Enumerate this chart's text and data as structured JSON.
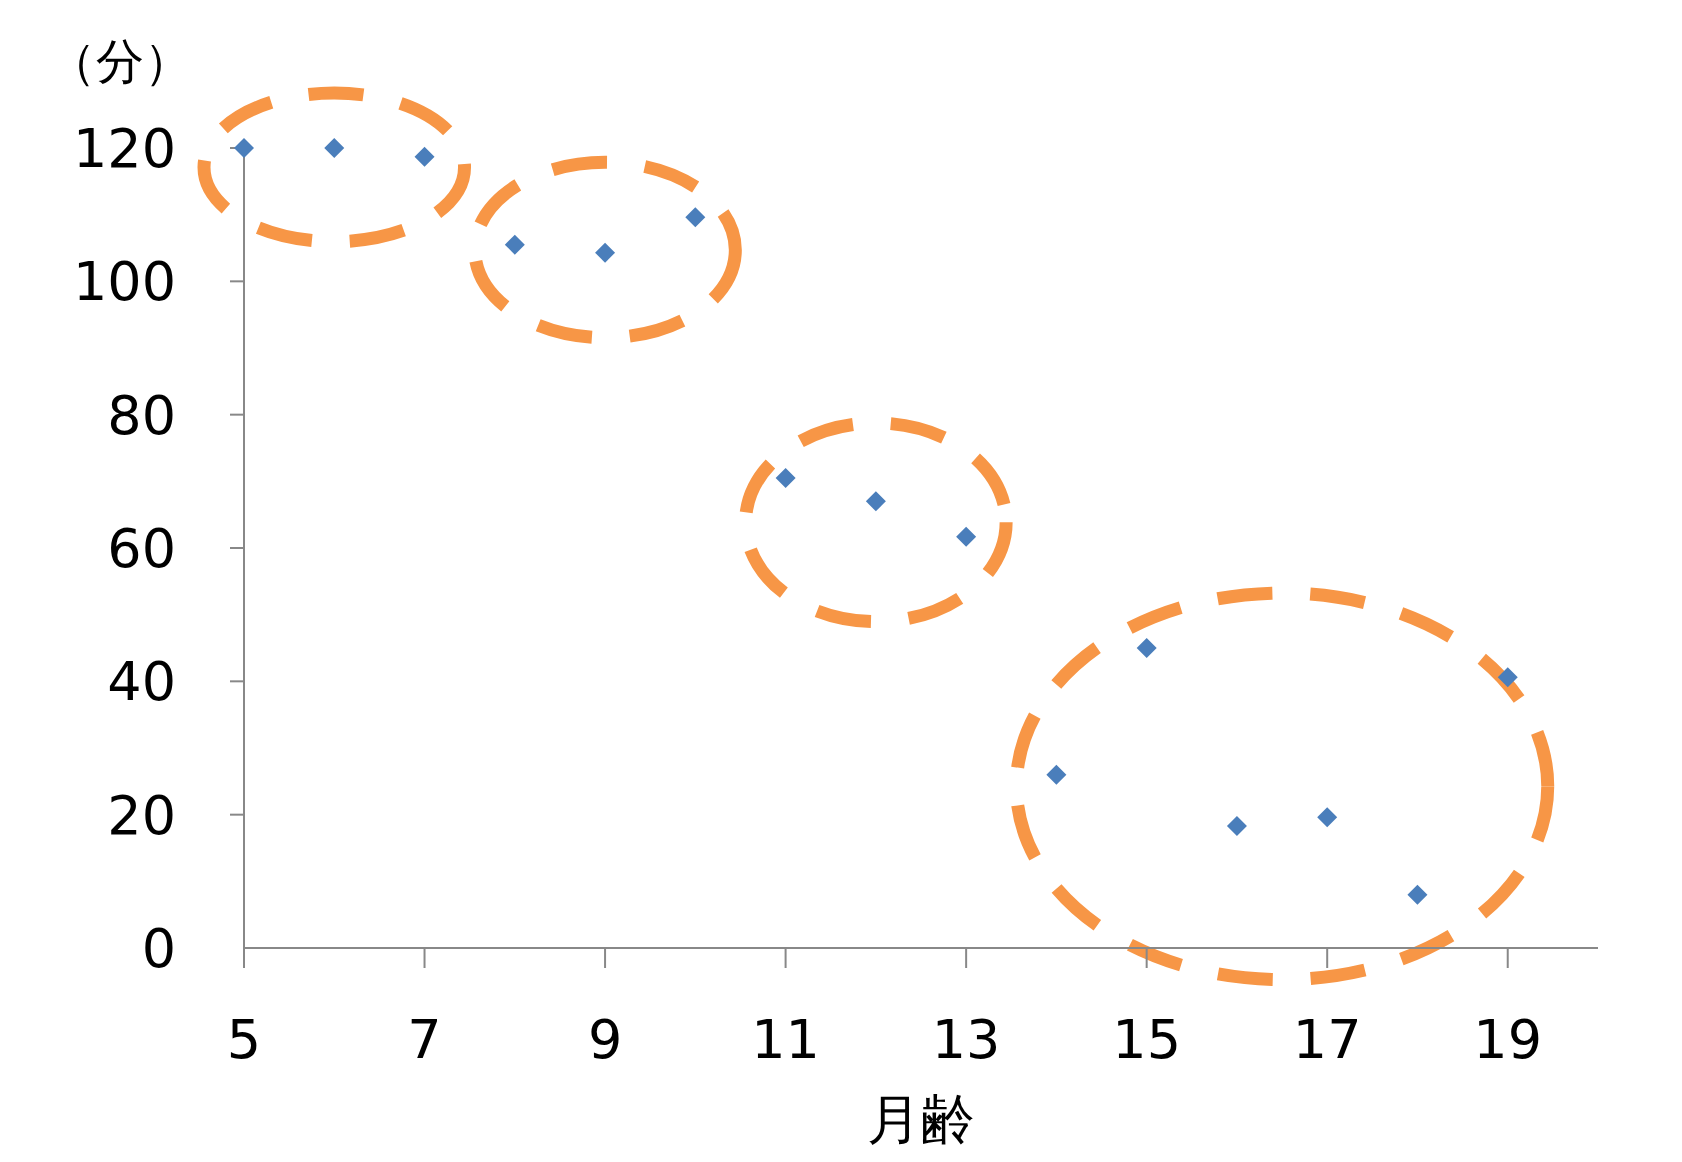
{
  "chart_data": {
    "type": "scatter",
    "ylabel": "（分）",
    "xlabel": "月齢",
    "x": [
      5,
      6,
      7,
      8,
      9,
      10,
      11,
      12,
      13,
      14,
      15,
      16,
      17,
      18,
      19
    ],
    "series": [
      {
        "color": "#4a7ebb",
        "values": [
          120,
          120,
          118.7,
          105.5,
          104.3,
          109.6,
          70.5,
          67,
          61.7,
          26,
          45,
          18.3,
          19.6,
          8,
          40.6
        ]
      }
    ],
    "xlim": [
      5,
      20
    ],
    "xticks": [
      5,
      7,
      9,
      11,
      13,
      15,
      17,
      19
    ],
    "ylim": [
      0,
      120
    ],
    "yticks": [
      0,
      20,
      40,
      60,
      80,
      100,
      120
    ],
    "marker": "diamond",
    "grid": false
  }
}
